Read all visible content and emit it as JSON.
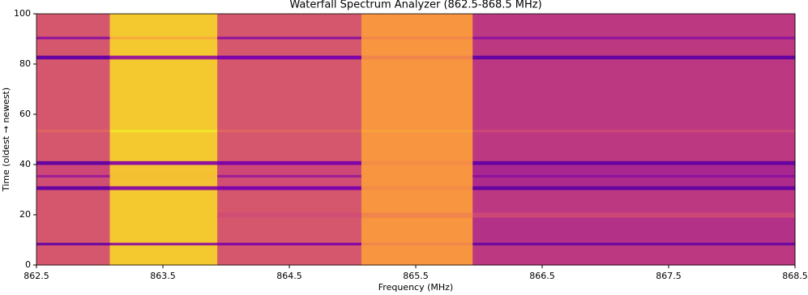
{
  "chart_data": {
    "type": "heatmap",
    "title": "Waterfall Spectrum Analyzer (862.5-868.5 MHz)",
    "x_label": "Frequency (MHz)",
    "y_label": "Time (oldest → newest)",
    "colormap": "plasma",
    "x_edges": [
      862.5,
      863.08,
      863.93,
      865.07,
      865.95,
      868.5
    ],
    "y_edges": [
      0,
      8,
      9,
      19,
      21,
      30,
      31.5,
      35,
      36,
      40,
      41.5,
      53,
      54,
      82,
      83.5,
      90,
      91,
      100
    ],
    "values": [
      [
        0.55,
        0.88,
        0.55,
        0.75,
        0.45
      ],
      [
        0.2,
        0.3,
        0.25,
        0.7,
        0.2
      ],
      [
        0.55,
        0.88,
        0.55,
        0.75,
        0.42
      ],
      [
        0.55,
        0.88,
        0.52,
        0.7,
        0.5
      ],
      [
        0.55,
        0.88,
        0.55,
        0.75,
        0.45
      ],
      [
        0.2,
        0.3,
        0.25,
        0.72,
        0.2
      ],
      [
        0.52,
        0.86,
        0.52,
        0.75,
        0.4
      ],
      [
        0.35,
        0.85,
        0.35,
        0.75,
        0.3
      ],
      [
        0.5,
        0.86,
        0.5,
        0.75,
        0.38
      ],
      [
        0.2,
        0.3,
        0.25,
        0.72,
        0.2
      ],
      [
        0.55,
        0.88,
        0.55,
        0.75,
        0.45
      ],
      [
        0.6,
        0.95,
        0.6,
        0.78,
        0.5
      ],
      [
        0.55,
        0.88,
        0.55,
        0.75,
        0.45
      ],
      [
        0.2,
        0.35,
        0.25,
        0.7,
        0.2
      ],
      [
        0.55,
        0.88,
        0.55,
        0.75,
        0.45
      ],
      [
        0.3,
        0.8,
        0.3,
        0.7,
        0.3
      ],
      [
        0.55,
        0.88,
        0.55,
        0.75,
        0.45
      ]
    ],
    "xlim": [
      862.5,
      868.5
    ],
    "xticks": [
      862.5,
      863.5,
      864.5,
      865.5,
      866.5,
      867.5,
      868.5
    ],
    "ylim": [
      0,
      100
    ],
    "yticks": [
      0,
      20,
      40,
      60,
      80,
      100
    ]
  }
}
